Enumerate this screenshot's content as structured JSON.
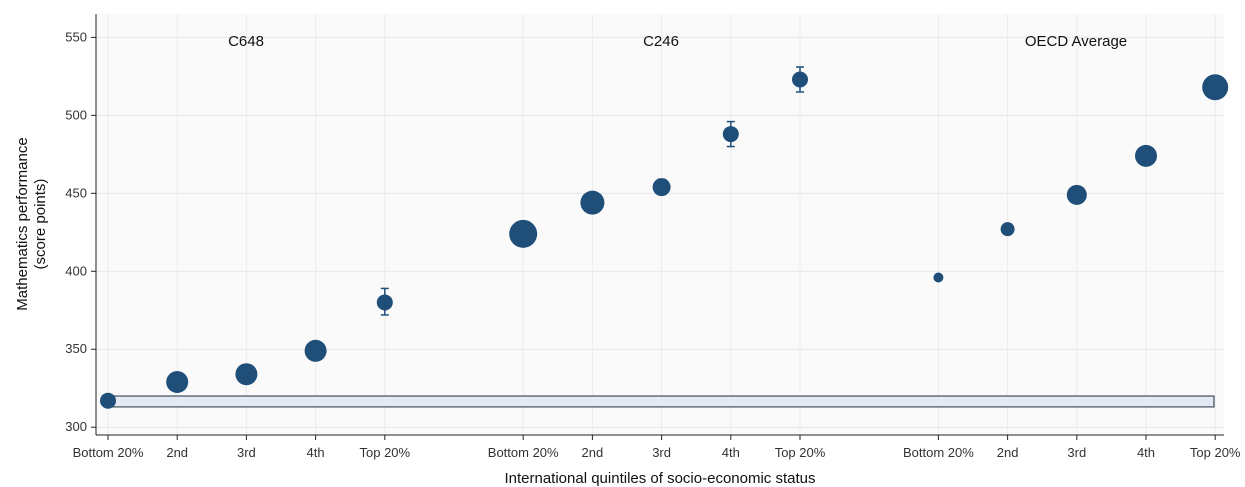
{
  "chart_data": {
    "type": "scatter",
    "title": "",
    "xlabel": "International quintiles of socio-economic status",
    "ylabel_lines": [
      "Mathematics performance",
      "(score points)"
    ],
    "ylim": [
      295,
      565
    ],
    "y_ticks": [
      300,
      350,
      400,
      450,
      500,
      550
    ],
    "grid": true,
    "marker_color": "#1f4e79",
    "band_fill": "#e3e9f3",
    "band_stroke": "#1f2d3d",
    "band_range": [
      313,
      320
    ],
    "groups": [
      {
        "name": "C648",
        "categories": [
          "Bottom 20%",
          "2nd",
          "3rd",
          "4th",
          "Top 20%"
        ],
        "values": [
          317,
          329,
          334,
          349,
          380
        ],
        "error_low": [
          317,
          329,
          334,
          349,
          372
        ],
        "error_high": [
          317,
          329,
          334,
          349,
          389
        ],
        "marker_sizes": [
          8,
          11,
          11,
          11,
          8
        ]
      },
      {
        "name": "C246",
        "categories": [
          "Bottom 20%",
          "2nd",
          "3rd",
          "4th",
          "Top 20%"
        ],
        "values": [
          424,
          444,
          454,
          488,
          523
        ],
        "error_low": [
          424,
          444,
          449,
          480,
          515
        ],
        "error_high": [
          424,
          444,
          459,
          496,
          531
        ],
        "marker_sizes": [
          14,
          12,
          9,
          8,
          8
        ]
      },
      {
        "name": "OECD Average",
        "categories": [
          "Bottom 20%",
          "2nd",
          "3rd",
          "4th",
          "Top 20%"
        ],
        "values": [
          396,
          427,
          449,
          474,
          518
        ],
        "error_low": [
          396,
          427,
          449,
          474,
          518
        ],
        "error_high": [
          396,
          427,
          449,
          474,
          518
        ],
        "marker_sizes": [
          5,
          7,
          10,
          11,
          13
        ]
      }
    ]
  }
}
